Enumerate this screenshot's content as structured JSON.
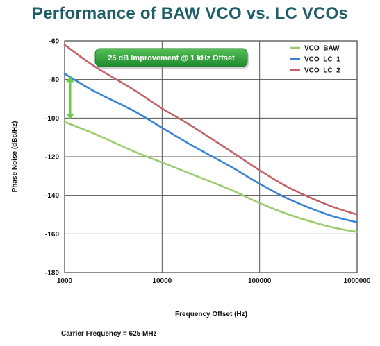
{
  "chart_data": {
    "type": "line",
    "title": "Performance of BAW VCO vs. LC VCOs",
    "xlabel": "Frequency Offset (Hz)",
    "ylabel": "Phase Noise (dBc/Hz)",
    "x_scale": "log",
    "xlim": [
      1000,
      1000000
    ],
    "ylim": [
      -180,
      -60
    ],
    "x_ticks": [
      "1000",
      "10000",
      "100000",
      "1000000"
    ],
    "y_ticks": [
      "-60",
      "-80",
      "-100",
      "-120",
      "-140",
      "-160",
      "-180"
    ],
    "grid": true,
    "legend_position": "top-right",
    "series": [
      {
        "name": "VCO_BAW",
        "color": "#9bcb6e",
        "x": [
          1000,
          2000,
          5000,
          10000,
          20000,
          50000,
          100000,
          200000,
          500000,
          1000000
        ],
        "y": [
          -102,
          -108,
          -117,
          -123,
          -129,
          -137,
          -144,
          -150,
          -156,
          -159
        ]
      },
      {
        "name": "VCO_LC_1",
        "color": "#3a84d4",
        "x": [
          1000,
          2000,
          5000,
          10000,
          20000,
          50000,
          100000,
          200000,
          500000,
          1000000
        ],
        "y": [
          -77,
          -86,
          -96,
          -105,
          -114,
          -125,
          -134,
          -142,
          -150,
          -154
        ]
      },
      {
        "name": "VCO_LC_2",
        "color": "#c2646a",
        "x": [
          1000,
          2000,
          5000,
          10000,
          20000,
          50000,
          100000,
          200000,
          500000,
          1000000
        ],
        "y": [
          -62,
          -73,
          -85,
          -95,
          -104,
          -117,
          -127,
          -136,
          -145,
          -150
        ]
      }
    ],
    "annotations": [
      {
        "text": "25 dB Improvement @ 1 kHz Offset",
        "x": 1000,
        "y_from": -102,
        "y_to": -77,
        "color": "#2e9a3a"
      }
    ],
    "footnote": "Carrier Frequency = 625 MHz"
  }
}
